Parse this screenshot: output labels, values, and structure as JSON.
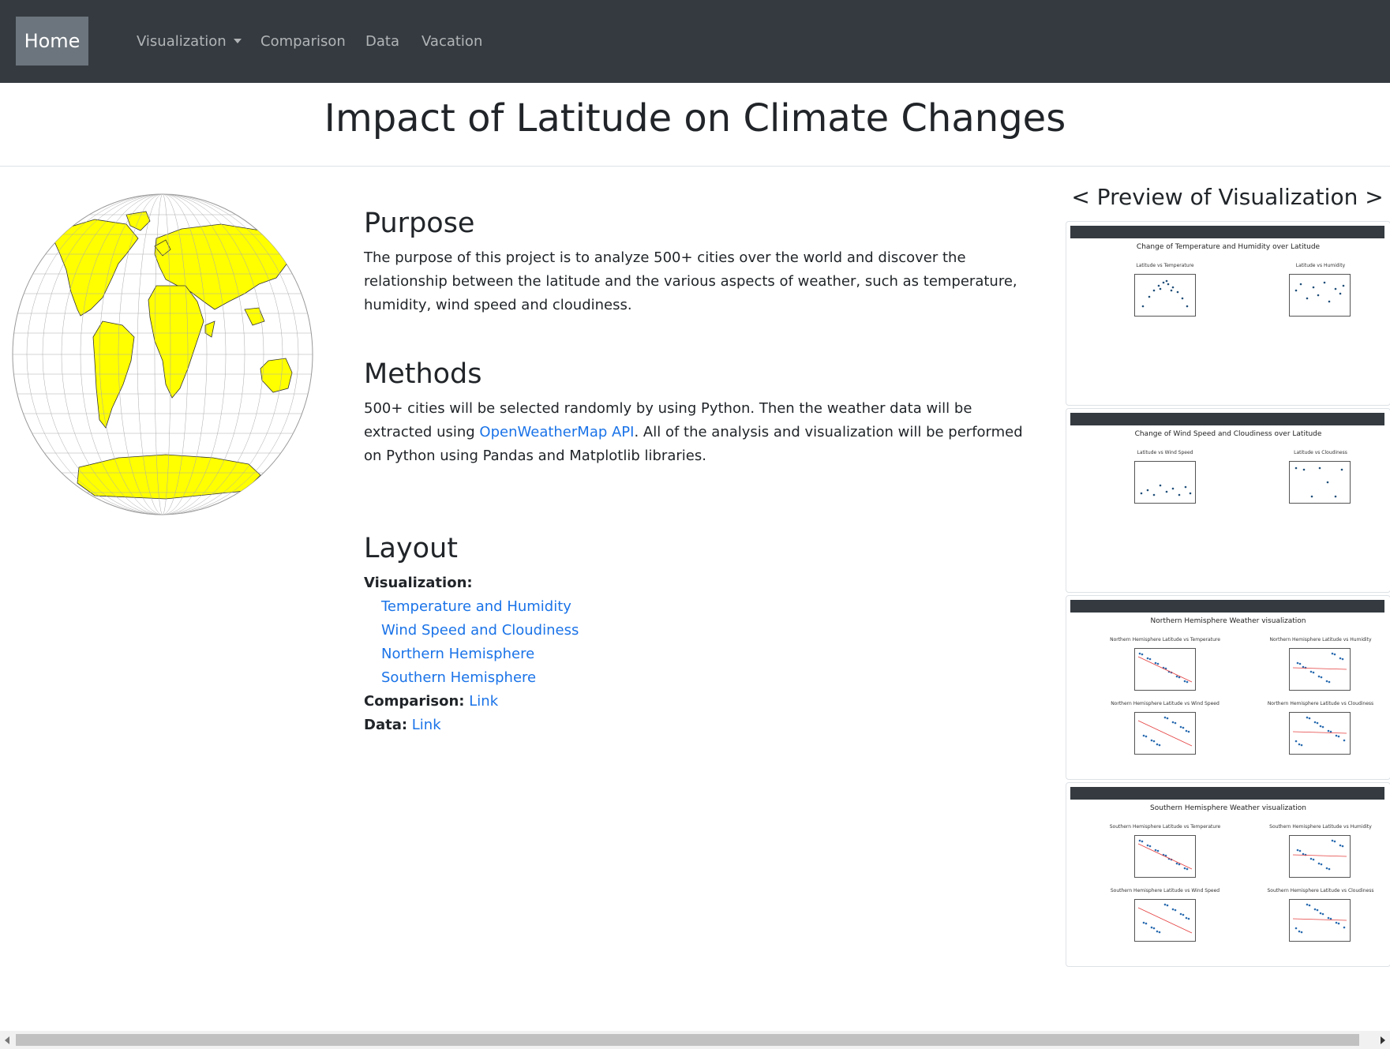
{
  "nav": {
    "home": "Home",
    "visualization": "Visualization",
    "comparison": "Comparison",
    "data": "Data",
    "vacation": "Vacation"
  },
  "page_title": "Impact of Latitude on Climate Changes",
  "purpose": {
    "heading": "Purpose",
    "text": "The purpose of this project is to analyze 500+ cities over the world and discover the relationship between the latitude and the various aspects of weather, such as temperature, humidity, wind speed and cloudiness."
  },
  "methods": {
    "heading": "Methods",
    "text_before": "500+ cities will be selected randomly by using Python. Then the weather data will be extracted using ",
    "link": "OpenWeatherMap API",
    "text_after": ". All of the analysis and visualization will be performed on Python using Pandas and Matplotlib libraries."
  },
  "layout": {
    "heading": "Layout",
    "visualization_label": "Visualization:",
    "links": [
      "Temperature and Humidity",
      "Wind Speed and Cloudiness",
      "Northern Hemisphere",
      "Southern Hemisphere"
    ],
    "comparison_label": "Comparison:",
    "comparison_link": "Link",
    "data_label": "Data:",
    "data_link": "Link"
  },
  "preview": {
    "title": "< Preview of Visualization >",
    "cards": [
      {
        "title": "Change of Temperature and Humidity over Latitude",
        "plots": [
          "Latitude vs Temperature",
          "Latitude vs Humidity"
        ]
      },
      {
        "title": "Change of Wind Speed and Cloudiness over Latitude",
        "plots": [
          "Latitude vs Wind Speed",
          "Latitude vs Cloudiness"
        ]
      },
      {
        "title": "Northern Hemisphere Weather visualization",
        "plots": [
          "Northern Hemisphere Latitude vs Temperature",
          "Northern Hemisphere Latitude vs Humidity",
          "Northern Hemisphere Latitude vs Wind Speed",
          "Northern Hemisphere Latitude vs Cloudiness"
        ]
      },
      {
        "title": "Southern Hemisphere Weather visualization",
        "plots": [
          "Southern Hemisphere Latitude vs Temperature",
          "Southern Hemisphere Latitude vs Humidity",
          "Southern Hemisphere Latitude vs Wind Speed",
          "Southern Hemisphere Latitude vs Cloudiness"
        ]
      }
    ]
  },
  "colors": {
    "navbar": "#343a40",
    "home_active": "#6c757d",
    "link": "#1a73e8",
    "land": "#ffff00",
    "plot_point": "#1f4e79"
  }
}
